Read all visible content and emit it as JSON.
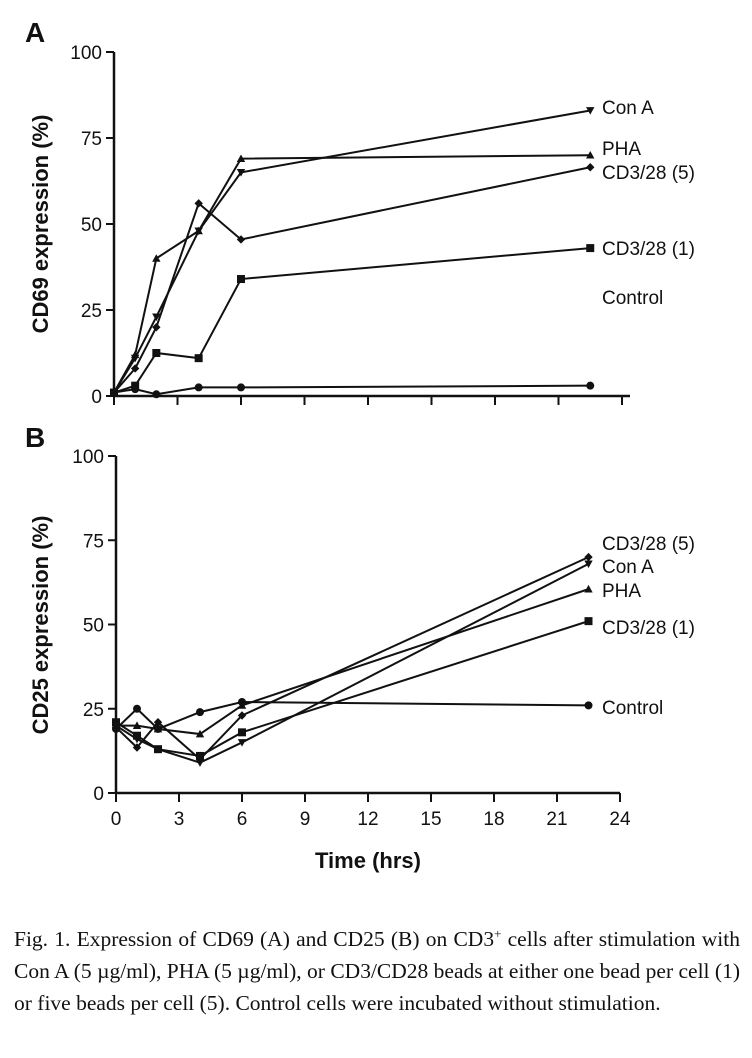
{
  "chart_data": [
    {
      "type": "line",
      "panel_label": "A",
      "xlabel": "",
      "ylabel": "CD69 expression (%)",
      "xlim": [
        0,
        24
      ],
      "ylim": [
        0,
        100
      ],
      "yticks": [
        "0",
        "25",
        "50",
        "75",
        "100"
      ],
      "grid": false,
      "x": [
        0,
        1,
        2,
        4,
        6,
        22.5
      ],
      "series": [
        {
          "name": "Con A",
          "marker": "triangle-down",
          "values": [
            1,
            11,
            23,
            48,
            65,
            83
          ]
        },
        {
          "name": "PHA",
          "marker": "triangle-up",
          "values": [
            1,
            12,
            40,
            48,
            69,
            70
          ]
        },
        {
          "name": "CD3/28 (5)",
          "marker": "diamond",
          "values": [
            1,
            8,
            20,
            56,
            45.5,
            66.5
          ]
        },
        {
          "name": "CD3/28 (1)",
          "marker": "square",
          "values": [
            1,
            3,
            12.5,
            11,
            34,
            43
          ]
        },
        {
          "name": "Control",
          "marker": "circle",
          "values": [
            1,
            2,
            0.5,
            2.5,
            2.5,
            3
          ]
        }
      ]
    },
    {
      "type": "line",
      "panel_label": "B",
      "xlabel": "Time (hrs)",
      "ylabel": "CD25 expression (%)",
      "xlim": [
        0,
        24
      ],
      "ylim": [
        0,
        100
      ],
      "xticks": [
        "0",
        "3",
        "6",
        "9",
        "12",
        "15",
        "18",
        "21",
        "24"
      ],
      "yticks": [
        "0",
        "25",
        "50",
        "75",
        "100"
      ],
      "grid": false,
      "x": [
        0,
        1,
        2,
        4,
        6,
        22.5
      ],
      "series": [
        {
          "name": "CD3/28 (5)",
          "marker": "diamond",
          "values": [
            19.5,
            13.5,
            21,
            10,
            23,
            70
          ]
        },
        {
          "name": "Con A",
          "marker": "triangle-down",
          "values": [
            20,
            16,
            13,
            9,
            15,
            68
          ]
        },
        {
          "name": "PHA",
          "marker": "triangle-up",
          "values": [
            20,
            20,
            19,
            17.5,
            26,
            60.5
          ]
        },
        {
          "name": "CD3/28 (1)",
          "marker": "square",
          "values": [
            21,
            17,
            13,
            11,
            18,
            51
          ]
        },
        {
          "name": "Control",
          "marker": "circle",
          "values": [
            19,
            25,
            19,
            24,
            27,
            26
          ]
        }
      ]
    }
  ],
  "caption": {
    "part1": "Fig. 1. Expression of CD69 (A) and CD25 (B) on CD3",
    "sup": "+",
    "part2": " cells after stimulation with Con A (5 µg/ml), PHA (5 µg/ml), or CD3/CD28 beads at either one bead per cell (1) or five beads per cell (5). Control cells were incubated without stimulation."
  }
}
